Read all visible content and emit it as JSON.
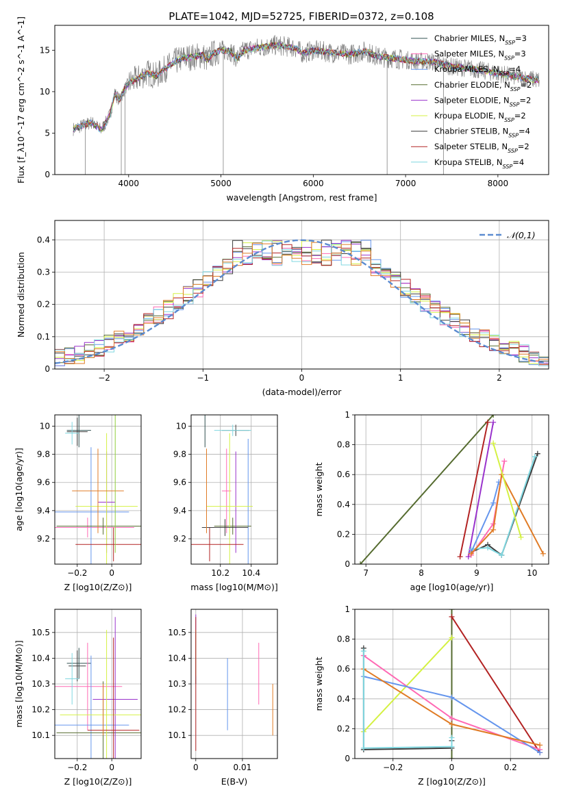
{
  "title": "PLATE=1042, MJD=52725, FIBERID=0372, z=0.108",
  "colors": [
    "#2f4f4f",
    "#ff69b4",
    "#6495ed",
    "#556b2f",
    "#9932cc",
    "#d4f142",
    "#3c3c3c",
    "#b22222",
    "#7fd7e0"
  ],
  "chart_data": [
    {
      "id": "spectrum",
      "type": "line",
      "xlabel": "wavelength [Angstrom, rest frame]",
      "ylabel": "Flux [f_λ10^-17 erg cm^-2 s^-1 A^-1]",
      "xlim": [
        3200,
        8550
      ],
      "ylim": [
        0,
        18
      ],
      "xticks": [
        4000,
        5000,
        6000,
        7000,
        8000
      ],
      "yticks": [
        0,
        5,
        10,
        15
      ],
      "legend_position": "top-right",
      "series": [
        {
          "name": "Chabrier MILES, N_SSP=3",
          "color": "#2f4f4f"
        },
        {
          "name": "Salpeter MILES, N_SSP=3",
          "color": "#ff69b4"
        },
        {
          "name": "Kroupa MILES, N_SSP=4",
          "color": "#6495ed"
        },
        {
          "name": "Chabrier ELODIE, N_SSP=2",
          "color": "#556b2f"
        },
        {
          "name": "Salpeter ELODIE, N_SSP=2",
          "color": "#9932cc"
        },
        {
          "name": "Kroupa ELODIE, N_SSP=2",
          "color": "#d4f142"
        },
        {
          "name": "Chabrier STELIB, N_SSP=4",
          "color": "#3c3c3c"
        },
        {
          "name": "Salpeter STELIB, N_SSP=2",
          "color": "#b22222"
        },
        {
          "name": "Kroupa STELIB, N_SSP=4",
          "color": "#7fd7e0"
        }
      ],
      "data_line_color": "#808080",
      "continuum": [
        [
          3400,
          5.5
        ],
        [
          3500,
          5.9
        ],
        [
          3600,
          6.3
        ],
        [
          3700,
          5.4
        ],
        [
          3750,
          6.2
        ],
        [
          3800,
          7.3
        ],
        [
          3850,
          9.8
        ],
        [
          3900,
          9.0
        ],
        [
          3950,
          10.2
        ],
        [
          4000,
          11.0
        ],
        [
          4100,
          11.6
        ],
        [
          4200,
          12.3
        ],
        [
          4300,
          11.9
        ],
        [
          4400,
          12.8
        ],
        [
          4500,
          13.6
        ],
        [
          4600,
          14.1
        ],
        [
          4700,
          14.2
        ],
        [
          4800,
          14.4
        ],
        [
          4861,
          13.8
        ],
        [
          4900,
          14.5
        ],
        [
          5000,
          15.0
        ],
        [
          5100,
          14.9
        ],
        [
          5175,
          14.0
        ],
        [
          5250,
          15.0
        ],
        [
          5400,
          15.3
        ],
        [
          5600,
          15.6
        ],
        [
          5800,
          15.3
        ],
        [
          5890,
          14.6
        ],
        [
          6000,
          15.0
        ],
        [
          6200,
          14.7
        ],
        [
          6400,
          14.5
        ],
        [
          6563,
          14.9
        ],
        [
          6700,
          14.2
        ],
        [
          6900,
          14.0
        ],
        [
          7100,
          13.7
        ],
        [
          7300,
          13.6
        ],
        [
          7500,
          13.0
        ],
        [
          7700,
          12.8
        ],
        [
          7900,
          12.4
        ],
        [
          8100,
          12.0
        ],
        [
          8300,
          11.6
        ],
        [
          8450,
          11.4
        ]
      ]
    },
    {
      "id": "residuals",
      "type": "step",
      "xlabel": "(data-model)/error",
      "ylabel": "Normed distribution",
      "xlim": [
        -2.5,
        2.5
      ],
      "ylim": [
        0,
        0.46
      ],
      "xticks": [
        -2,
        -1,
        0,
        1,
        2
      ],
      "yticks": [
        0.0,
        0.1,
        0.2,
        0.3,
        0.4
      ],
      "reference_curve": {
        "label": "𝒩(0,1)",
        "color": "#5b8bd0",
        "mean": 0,
        "sigma": 1
      },
      "bin_width": 0.1,
      "legend_position": "top-right"
    },
    {
      "id": "Z-age",
      "type": "errorbar",
      "xlabel": "Z [log10(Z/Z⊙)]",
      "ylabel": "age [log10(age/yr)]",
      "xlim": [
        -0.33,
        0.17
      ],
      "ylim": [
        9.02,
        10.08
      ],
      "xticks": [
        -0.2,
        0.0
      ],
      "yticks": [
        9.2,
        9.4,
        9.6,
        9.8,
        10.0
      ],
      "points": [
        {
          "c": 0,
          "x": -0.19,
          "xe": 0.07,
          "y": 9.97,
          "ye": 0.12
        },
        {
          "c": 1,
          "x": -0.14,
          "xe": 0.27,
          "y": 9.28,
          "ye": 0.07
        },
        {
          "c": 2,
          "x": -0.12,
          "xe": 0.22,
          "y": 9.39,
          "ye": 0.46
        },
        {
          "c": 3,
          "x": -0.05,
          "xe": 0.27,
          "y": 9.29,
          "ye": 0.06
        },
        {
          "c": 4,
          "x": -0.03,
          "xe": 0.05,
          "y": 9.46,
          "ye": 0.36
        },
        {
          "c": 5,
          "x": -0.03,
          "xe": 0.18,
          "y": 9.43,
          "ye": 0.52
        },
        {
          "c": 6,
          "x": -0.2,
          "xe": 0.06,
          "y": 9.96,
          "ye": 0.1
        },
        {
          "c": 7,
          "x": 0.01,
          "xe": 0.22,
          "y": 9.16,
          "ye": 0.12
        },
        {
          "c": 8,
          "x": -0.23,
          "xe": 0.04,
          "y": 9.95,
          "ye": 0.08
        },
        {
          "c": 10,
          "x": -0.08,
          "xe": 0.15,
          "y": 9.54,
          "ye": 0.3
        },
        {
          "c": 11,
          "x": 0.02,
          "xe": 0.0,
          "y": 9.6,
          "ye": 0.5
        }
      ]
    },
    {
      "id": "mass-age",
      "type": "errorbar",
      "xlabel": "mass [log10(M/M⊙)]",
      "ylabel": "",
      "xlim": [
        10.01,
        10.57
      ],
      "ylim": [
        9.02,
        10.08
      ],
      "xticks": [
        10.2,
        10.4
      ],
      "yticks": [
        9.2,
        9.4,
        9.6,
        9.8,
        10.0
      ],
      "points": [
        {
          "c": 0,
          "x": 10.1,
          "xe": 0.0,
          "y": 9.97,
          "ye": 0.12
        },
        {
          "c": 1,
          "x": 10.24,
          "xe": 0.03,
          "y": 9.54,
          "ye": 0.3
        },
        {
          "c": 2,
          "x": 10.38,
          "xe": 0.0,
          "y": 9.45,
          "ye": 0.46
        },
        {
          "c": 3,
          "x": 10.28,
          "xe": 0.12,
          "y": 9.29,
          "ye": 0.06
        },
        {
          "c": 4,
          "x": 10.3,
          "xe": 0.0,
          "y": 9.46,
          "ye": 0.36
        },
        {
          "c": 5,
          "x": 10.26,
          "xe": 0.15,
          "y": 9.43,
          "ye": 0.52
        },
        {
          "c": 6,
          "x": 10.3,
          "xe": 0.09,
          "y": 9.97,
          "ye": 0.04
        },
        {
          "c": 7,
          "x": 10.13,
          "xe": 0.22,
          "y": 9.16,
          "ye": 0.12
        },
        {
          "c": 8,
          "x": 10.28,
          "xe": 0.12,
          "y": 9.97,
          "ye": 0.04
        },
        {
          "c": 9,
          "x": 10.23,
          "xe": 0.15,
          "y": 9.28,
          "ye": 0.06
        },
        {
          "c": 10,
          "x": 10.11,
          "xe": 0.0,
          "y": 9.54,
          "ye": 0.3
        }
      ]
    },
    {
      "id": "age-weight",
      "type": "line",
      "xlabel": "age [log10(age/yr)]",
      "ylabel": "mass weight",
      "xlim": [
        6.8,
        10.3
      ],
      "ylim": [
        0,
        1.0
      ],
      "xticks": [
        7,
        8,
        9,
        10
      ],
      "yticks": [
        0.0,
        0.2,
        0.4,
        0.6,
        0.8,
        1.0
      ],
      "grid": true,
      "series": [
        {
          "c": 3,
          "points": [
            [
              6.9,
              0.0
            ],
            [
              9.3,
              1.0
            ]
          ]
        },
        {
          "c": 7,
          "points": [
            [
              8.7,
              0.05
            ],
            [
              9.2,
              0.95
            ]
          ]
        },
        {
          "c": 4,
          "points": [
            [
              8.85,
              0.05
            ],
            [
              9.3,
              0.95
            ]
          ]
        },
        {
          "c": 6,
          "points": [
            [
              8.9,
              0.08
            ],
            [
              9.2,
              0.13
            ],
            [
              9.45,
              0.06
            ],
            [
              10.1,
              0.74
            ]
          ]
        },
        {
          "c": 8,
          "points": [
            [
              8.9,
              0.1
            ],
            [
              9.2,
              0.11
            ],
            [
              9.45,
              0.06
            ],
            [
              10.05,
              0.72
            ]
          ]
        },
        {
          "c": 2,
          "points": [
            [
              8.9,
              0.08
            ],
            [
              9.3,
              0.41
            ],
            [
              9.4,
              0.55
            ]
          ]
        },
        {
          "c": 1,
          "points": [
            [
              8.9,
              0.06
            ],
            [
              9.3,
              0.27
            ],
            [
              9.5,
              0.69
            ]
          ]
        },
        {
          "c": 10,
          "points": [
            [
              8.9,
              0.07
            ],
            [
              9.3,
              0.23
            ],
            [
              9.45,
              0.6
            ],
            [
              10.2,
              0.07
            ]
          ]
        },
        {
          "c": 5,
          "points": [
            [
              9.3,
              0.81
            ],
            [
              9.8,
              0.18
            ]
          ]
        }
      ]
    },
    {
      "id": "Z-mass",
      "type": "errorbar",
      "xlabel": "Z [log10(Z/Z⊙)]",
      "ylabel": "mass [log10(M/M⊙)]",
      "xlim": [
        -0.33,
        0.17
      ],
      "ylim": [
        10.01,
        10.59
      ],
      "xticks": [
        -0.2,
        0.0
      ],
      "yticks": [
        10.1,
        10.2,
        10.3,
        10.4,
        10.5
      ],
      "points": [
        {
          "c": 0,
          "x": -0.19,
          "xe": 0.07,
          "y": 10.38,
          "ye": 0.06
        },
        {
          "c": 1,
          "x": -0.14,
          "xe": 0.2,
          "y": 10.29,
          "ye": 0.17
        },
        {
          "c": 2,
          "x": -0.12,
          "xe": 0.22,
          "y": 10.14,
          "ye": 0.27
        },
        {
          "c": 3,
          "x": -0.05,
          "xe": 0.27,
          "y": 10.11,
          "ye": 0.2
        },
        {
          "c": 4,
          "x": 0.02,
          "xe": 0.13,
          "y": 10.24,
          "ye": 0.32
        },
        {
          "c": 5,
          "x": -0.03,
          "xe": 0.27,
          "y": 10.18,
          "ye": 0.33
        },
        {
          "c": 6,
          "x": -0.2,
          "xe": 0.05,
          "y": 10.37,
          "ye": 0.06
        },
        {
          "c": 7,
          "x": 0.01,
          "xe": 0.15,
          "y": 10.12,
          "ye": 0.36
        },
        {
          "c": 8,
          "x": -0.23,
          "xe": 0.04,
          "y": 10.32,
          "ye": 0.1
        },
        {
          "c": 10,
          "x": -0.05,
          "xe": 0.0,
          "y": 10.2,
          "ye": 0.1
        }
      ]
    },
    {
      "id": "ebv-mass",
      "type": "errorbar",
      "xlabel": "E(B-V)",
      "ylabel": "",
      "xlim": [
        -0.001,
        0.0175
      ],
      "ylim": [
        10.01,
        10.59
      ],
      "xticks": [
        0.0,
        0.01
      ],
      "yticks": [
        10.1,
        10.2,
        10.3,
        10.4,
        10.5
      ],
      "points": [
        {
          "c": 0,
          "x": 0.0,
          "xe": 0.0,
          "y": 10.4,
          "ye": 0.1
        },
        {
          "c": 1,
          "x": 0.0135,
          "xe": 0.0,
          "y": 10.34,
          "ye": 0.12
        },
        {
          "c": 2,
          "x": 0.0068,
          "xe": 0.0,
          "y": 10.26,
          "ye": 0.14
        },
        {
          "c": 4,
          "x": 0.0,
          "xe": 0.0,
          "y": 10.45,
          "ye": 0.12
        },
        {
          "c": 5,
          "x": 0.0,
          "xe": 0.0,
          "y": 10.42,
          "ye": 0.09
        },
        {
          "c": 7,
          "x": 0.0,
          "xe": 0.0,
          "y": 10.3,
          "ye": 0.26
        },
        {
          "c": 10,
          "x": 0.0165,
          "xe": 0.0,
          "y": 10.2,
          "ye": 0.1
        }
      ]
    },
    {
      "id": "Z-weight",
      "type": "line",
      "xlabel": "Z [log10(Z/Z⊙)]",
      "ylabel": "mass weight",
      "xlim": [
        -0.33,
        0.33
      ],
      "ylim": [
        0,
        1.0
      ],
      "xticks": [
        -0.2,
        0.0,
        0.2
      ],
      "yticks": [
        0.0,
        0.2,
        0.4,
        0.6,
        0.8,
        1.0
      ],
      "grid": true,
      "series": [
        {
          "c": 3,
          "points": [
            [
              0.0,
              0.0
            ],
            [
              0.0,
              1.0
            ]
          ]
        },
        {
          "c": 7,
          "points": [
            [
              0.0,
              0.95
            ],
            [
              0.3,
              0.04
            ]
          ]
        },
        {
          "c": 5,
          "points": [
            [
              -0.3,
              0.18
            ],
            [
              0.0,
              0.81
            ]
          ]
        },
        {
          "c": 1,
          "points": [
            [
              -0.3,
              0.69
            ],
            [
              0.0,
              0.27
            ],
            [
              0.3,
              0.06
            ]
          ]
        },
        {
          "c": 2,
          "points": [
            [
              -0.3,
              0.55
            ],
            [
              0.0,
              0.41
            ],
            [
              0.3,
              0.04
            ]
          ]
        },
        {
          "c": 10,
          "points": [
            [
              -0.3,
              0.6
            ],
            [
              0.0,
              0.23
            ],
            [
              0.3,
              0.09
            ]
          ]
        },
        {
          "c": 6,
          "points": [
            [
              -0.3,
              0.74
            ],
            [
              -0.3,
              0.06
            ],
            [
              0.0,
              0.07
            ],
            [
              0.0,
              0.12
            ]
          ]
        },
        {
          "c": 8,
          "points": [
            [
              -0.3,
              0.72
            ],
            [
              -0.3,
              0.07
            ],
            [
              0.0,
              0.08
            ],
            [
              0.0,
              0.14
            ]
          ]
        }
      ]
    }
  ]
}
